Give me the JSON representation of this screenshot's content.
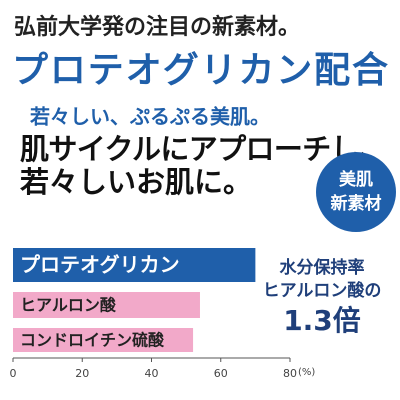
{
  "header": {
    "lead": "弘前大学発の注目の新素材。",
    "title": "プロテオグリカン配合",
    "subtitle": "若々しい、ぷるぷる美肌。",
    "copy": [
      "肌サイクルにアプローチし、",
      "若々しいお肌に。"
    ]
  },
  "badge": [
    "美肌",
    "新素材"
  ],
  "callout": [
    "水分保持率",
    "ヒアルロン酸の",
    "1.3倍"
  ],
  "chart_data": {
    "type": "hbar",
    "categories": [
      "プロテオグリカン",
      "ヒアルロン酸",
      "コンドロイチン硫酸"
    ],
    "values": [
      70,
      54,
      52
    ],
    "colors": [
      "#1f5faa",
      "#f2a9c9",
      "#f2a9c9"
    ],
    "xlim": [
      0,
      80
    ],
    "xticks": [
      0,
      20,
      40,
      60,
      80
    ],
    "x_unit": "(%)"
  }
}
